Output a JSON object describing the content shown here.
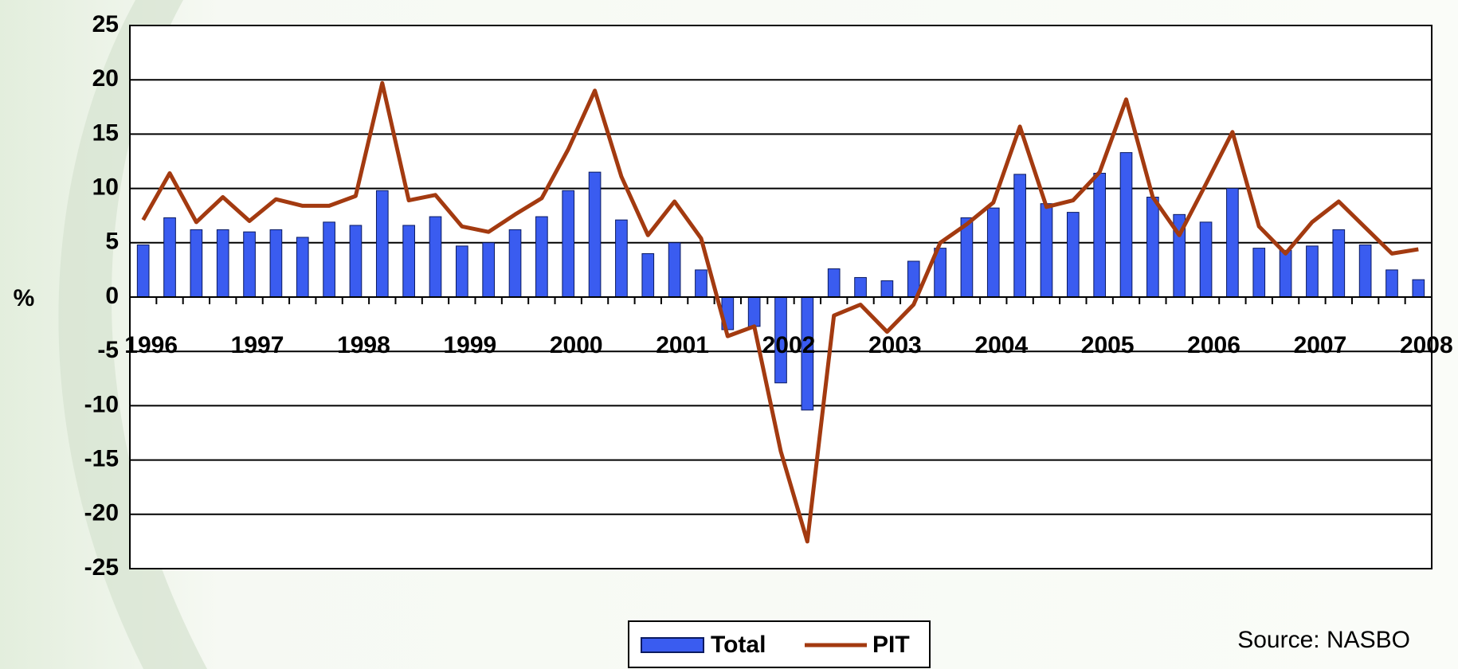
{
  "chart_data": {
    "type": "bar-line",
    "y_axis_label": "%",
    "source": "Source: NASBO",
    "categories": [
      "1996",
      null,
      null,
      null,
      "1997",
      null,
      null,
      null,
      "1998",
      null,
      null,
      null,
      "1999",
      null,
      null,
      null,
      "2000",
      null,
      null,
      null,
      "2001",
      null,
      null,
      null,
      "2002",
      null,
      null,
      null,
      "2003",
      null,
      null,
      null,
      "2004",
      null,
      null,
      null,
      "2005",
      null,
      null,
      null,
      "2006",
      null,
      null,
      null,
      "2007",
      null,
      null,
      null,
      "2008"
    ],
    "series": [
      {
        "name": "Total",
        "type": "bar",
        "color": "#3a5cf0",
        "values": [
          4.8,
          7.3,
          6.2,
          6.2,
          6.0,
          6.2,
          5.5,
          6.9,
          6.6,
          9.8,
          6.6,
          7.4,
          4.7,
          5.0,
          6.2,
          7.4,
          9.8,
          11.5,
          7.1,
          4.0,
          5.0,
          2.5,
          -3.0,
          -2.7,
          -7.9,
          -10.4,
          2.6,
          1.8,
          1.5,
          3.3,
          4.5,
          7.3,
          8.2,
          11.3,
          8.6,
          7.8,
          11.4,
          13.3,
          9.2,
          7.6,
          6.9,
          10.0,
          4.5,
          4.3,
          4.7,
          6.2,
          4.8,
          2.5,
          1.6
        ]
      },
      {
        "name": "PIT",
        "type": "line",
        "color": "#a33a10",
        "values": [
          7.1,
          11.4,
          6.9,
          9.2,
          7.0,
          9.0,
          8.4,
          8.4,
          9.3,
          19.7,
          8.9,
          9.4,
          6.5,
          6.0,
          7.6,
          9.1,
          13.6,
          19.0,
          11.1,
          5.7,
          8.8,
          5.4,
          -3.6,
          -2.7,
          -14.2,
          -22.5,
          -1.7,
          -0.7,
          -3.2,
          -0.7,
          5.0,
          6.7,
          8.7,
          15.7,
          8.3,
          8.9,
          11.5,
          18.2,
          9.2,
          5.7,
          10.4,
          15.2,
          6.5,
          4.0,
          6.9,
          8.8,
          6.4,
          4.0,
          4.4
        ]
      }
    ],
    "ylim": [
      -25,
      25
    ],
    "yticks": [
      -25,
      -20,
      -15,
      -10,
      -5,
      0,
      5,
      10,
      15,
      20,
      25
    ],
    "grid": true
  }
}
